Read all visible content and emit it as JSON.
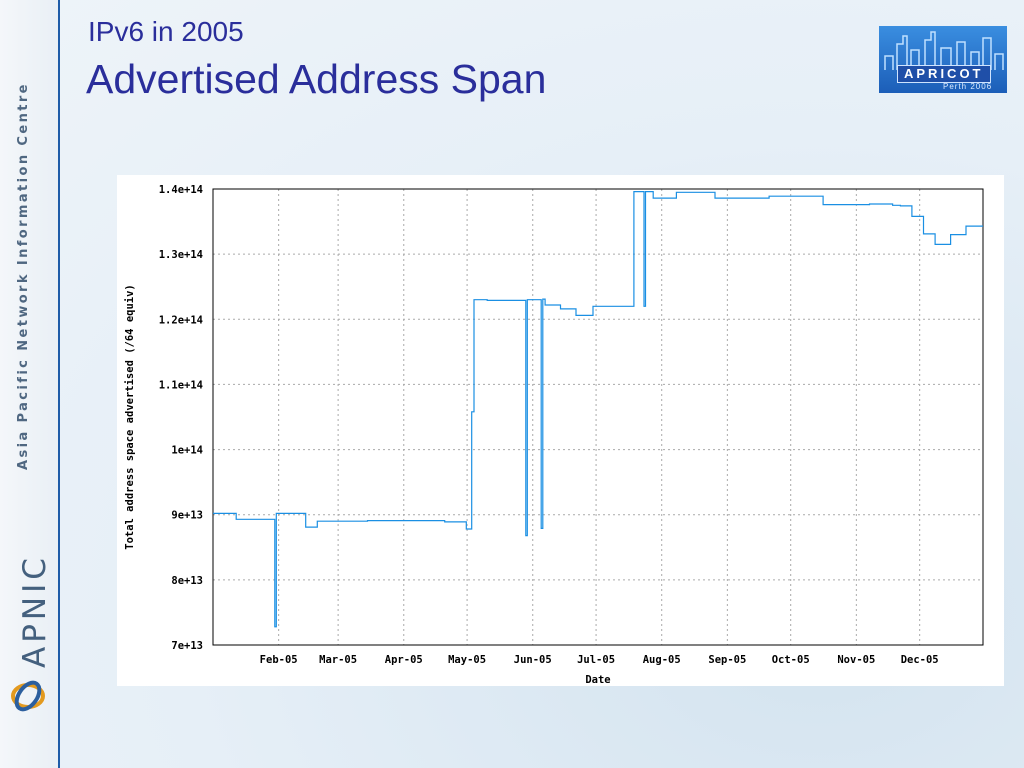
{
  "slide": {
    "supertitle": "IPv6 in 2005",
    "title": "Advertised Address Span"
  },
  "sidebar": {
    "org_name": "Asia Pacific Network Information Centre",
    "brand": "APNIC"
  },
  "logo": {
    "word": "APRICOT",
    "subtitle": "Perth 2006"
  },
  "colors": {
    "title": "#2a2e9b",
    "series": "#1a8fe3",
    "grid": "#aaaaaa",
    "sidebar_rule": "#1e5ca8"
  },
  "chart_data": {
    "type": "line",
    "title": "",
    "xlabel": "Date",
    "ylabel": "Total address space advertised (/64 equiv)",
    "xlim": [
      2005.0,
      2005.997
    ],
    "ylim": [
      70000000000000,
      140000000000000
    ],
    "y_ticks": [
      {
        "value": 70000000000000,
        "label": "7e+13"
      },
      {
        "value": 80000000000000,
        "label": "8e+13"
      },
      {
        "value": 90000000000000,
        "label": "9e+13"
      },
      {
        "value": 100000000000000,
        "label": "1e+14"
      },
      {
        "value": 110000000000000,
        "label": "1.1e+14"
      },
      {
        "value": 120000000000000,
        "label": "1.2e+14"
      },
      {
        "value": 130000000000000,
        "label": "1.3e+14"
      },
      {
        "value": 140000000000000,
        "label": "1.4e+14"
      }
    ],
    "x_ticks": [
      {
        "value": 2005.085,
        "label": "Feb-05"
      },
      {
        "value": 2005.162,
        "label": "Mar-05"
      },
      {
        "value": 2005.247,
        "label": "Apr-05"
      },
      {
        "value": 2005.329,
        "label": "May-05"
      },
      {
        "value": 2005.414,
        "label": "Jun-05"
      },
      {
        "value": 2005.496,
        "label": "Jul-05"
      },
      {
        "value": 2005.581,
        "label": "Aug-05"
      },
      {
        "value": 2005.666,
        "label": "Sep-05"
      },
      {
        "value": 2005.748,
        "label": "Oct-05"
      },
      {
        "value": 2005.833,
        "label": "Nov-05"
      },
      {
        "value": 2005.915,
        "label": "Dec-05"
      }
    ],
    "grid": true,
    "legend": "none",
    "series": [
      {
        "x": [
          2005.0,
          2005.03,
          2005.03,
          2005.08,
          2005.08,
          2005.082,
          2005.082,
          2005.084,
          2005.084,
          2005.12,
          2005.12,
          2005.135,
          2005.135,
          2005.2,
          2005.2,
          2005.3,
          2005.3,
          2005.328,
          2005.328,
          2005.335,
          2005.335,
          2005.338,
          2005.338,
          2005.355,
          2005.355,
          2005.405,
          2005.405,
          2005.407,
          2005.407,
          2005.425,
          2005.425,
          2005.427,
          2005.427,
          2005.43,
          2005.43,
          2005.45,
          2005.45,
          2005.47,
          2005.47,
          2005.492,
          2005.492,
          2005.52,
          2005.52,
          2005.545,
          2005.545,
          2005.558,
          2005.558,
          2005.56,
          2005.56,
          2005.57,
          2005.57,
          2005.6,
          2005.6,
          2005.65,
          2005.65,
          2005.72,
          2005.72,
          2005.79,
          2005.79,
          2005.85,
          2005.85,
          2005.88,
          2005.88,
          2005.89,
          2005.89,
          2005.905,
          2005.905,
          2005.92,
          2005.92,
          2005.935,
          2005.935,
          2005.955,
          2005.955,
          2005.975,
          2005.975,
          2005.997
        ],
        "y": [
          90200000000000,
          90200000000000,
          89300000000000,
          89300000000000,
          72800000000000,
          72800000000000,
          90200000000000,
          90200000000000,
          90200000000000,
          90200000000000,
          88100000000000,
          88100000000000,
          89000000000000,
          89000000000000,
          89100000000000,
          89100000000000,
          88900000000000,
          88900000000000,
          87800000000000,
          87800000000000,
          105800000000000,
          105800000000000,
          123000000000000,
          123000000000000,
          122900000000000,
          122900000000000,
          86800000000000,
          86800000000000,
          123000000000000,
          123000000000000,
          87900000000000,
          87900000000000,
          123100000000000,
          123100000000000,
          122200000000000,
          122200000000000,
          121600000000000,
          121600000000000,
          120600000000000,
          120600000000000,
          122000000000000,
          122000000000000,
          122000000000000,
          122000000000000,
          139600000000000,
          139600000000000,
          122000000000000,
          122000000000000,
          139600000000000,
          139600000000000,
          138600000000000,
          138600000000000,
          139500000000000,
          139500000000000,
          138600000000000,
          138600000000000,
          138900000000000,
          138900000000000,
          137600000000000,
          137600000000000,
          137700000000000,
          137700000000000,
          137500000000000,
          137500000000000,
          137400000000000,
          137400000000000,
          135800000000000,
          135800000000000,
          133100000000000,
          133100000000000,
          131500000000000,
          131500000000000,
          133000000000000,
          133000000000000,
          134300000000000,
          134300000000000
        ]
      }
    ]
  }
}
